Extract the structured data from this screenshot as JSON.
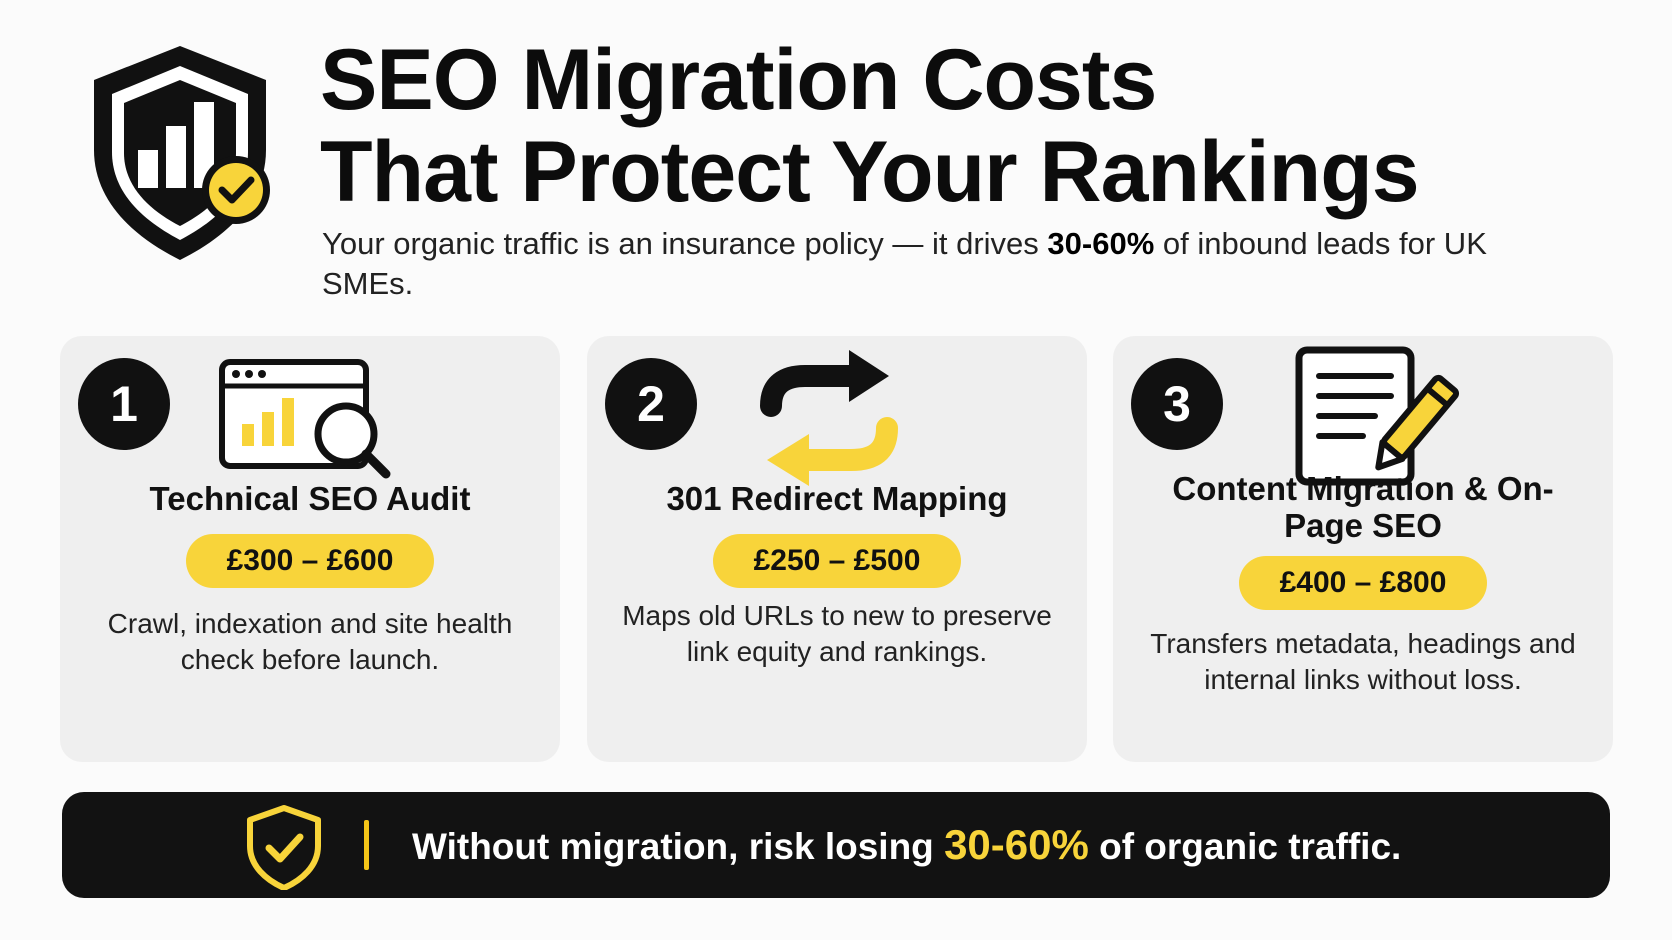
{
  "header": {
    "title_line1": "SEO Migration Costs",
    "title_line2": "That Protect Your Rankings",
    "subtitle_pre": "Your organic traffic is an insurance policy — it drives ",
    "subtitle_bold": "30-60%",
    "subtitle_post": " of inbound leads for UK SMEs.",
    "icon": "shield-chart-check-icon"
  },
  "cards": [
    {
      "number": "1",
      "icon": "browser-search-chart-icon",
      "title": "Technical SEO Audit",
      "price": "£300 – £600",
      "description": "Crawl, indexation and site health check before launch."
    },
    {
      "number": "2",
      "icon": "redirect-arrows-icon",
      "title": "301 Redirect Mapping",
      "price": "£250 – £500",
      "description": "Maps old URLs to new to preserve link equity and rankings."
    },
    {
      "number": "3",
      "icon": "document-pencil-icon",
      "title": "Content Migration & On-Page SEO",
      "price": "£400 – £800",
      "description": "Transfers metadata, headings and internal links without loss."
    }
  ],
  "banner": {
    "text_pre": "Without migration, risk losing ",
    "highlight": "30-60%",
    "text_post": " of organic traffic.",
    "icon": "shield-check-icon"
  },
  "colors": {
    "accent": "#f8d43a",
    "dark": "#111111",
    "card_bg": "#efefef",
    "background": "#fbfbfb"
  }
}
